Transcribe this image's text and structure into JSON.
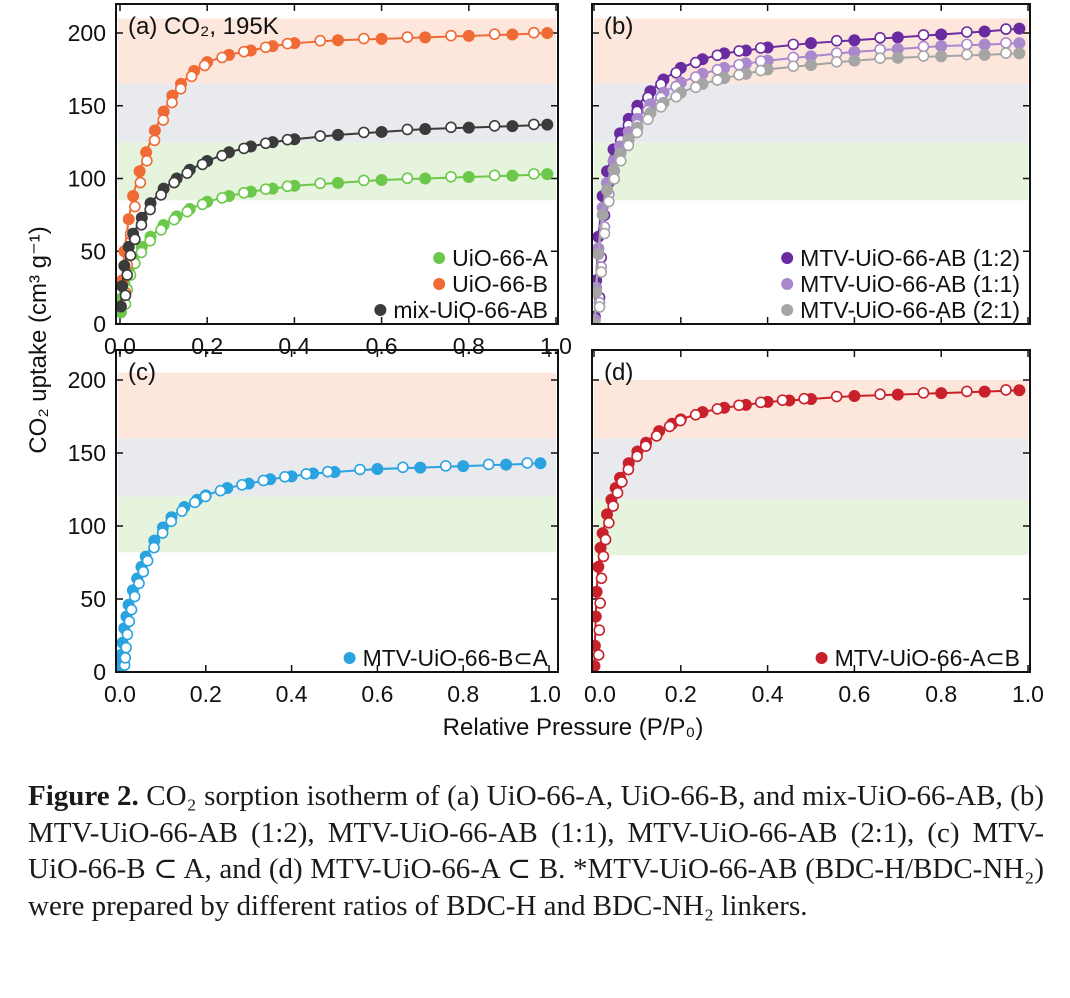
{
  "chart_data": [
    {
      "type": "scatter",
      "panel_label": "(a) CO₂, 195K",
      "xlim": [
        0,
        1.0
      ],
      "ylim": [
        0,
        200
      ],
      "x_ticks": [
        "0.0",
        "0.2",
        "0.4",
        "0.6",
        "0.8",
        "1.0"
      ],
      "y_ticks": [
        "0",
        "50",
        "100",
        "150",
        "200"
      ],
      "legend_placement": "bottom-right",
      "bands": [
        {
          "from": 165,
          "to": 210,
          "color": "#fde7dc"
        },
        {
          "from": 125,
          "to": 165,
          "color": "#e8eaee"
        },
        {
          "from": 85,
          "to": 125,
          "color": "#e6f4dd"
        }
      ],
      "series": [
        {
          "name": "UiO-66-A",
          "color": "#6cc84a",
          "x": [
            0.002,
            0.005,
            0.01,
            0.02,
            0.03,
            0.05,
            0.07,
            0.1,
            0.13,
            0.16,
            0.2,
            0.25,
            0.3,
            0.35,
            0.4,
            0.5,
            0.6,
            0.7,
            0.8,
            0.9,
            0.98
          ],
          "y": [
            8,
            18,
            28,
            38,
            44,
            53,
            60,
            68,
            74,
            79,
            84,
            88,
            91,
            93,
            95,
            97,
            99,
            100,
            101,
            102,
            103
          ]
        },
        {
          "name": "UiO-66-B",
          "color": "#ef6a34",
          "x": [
            0.002,
            0.005,
            0.01,
            0.02,
            0.03,
            0.045,
            0.06,
            0.08,
            0.1,
            0.12,
            0.14,
            0.17,
            0.2,
            0.25,
            0.3,
            0.35,
            0.4,
            0.5,
            0.6,
            0.7,
            0.8,
            0.9,
            0.98
          ],
          "y": [
            12,
            30,
            50,
            72,
            88,
            105,
            118,
            133,
            146,
            157,
            165,
            174,
            180,
            185,
            188,
            191,
            193,
            195,
            196,
            197,
            198,
            199,
            200
          ]
        },
        {
          "name": "mix-UiO-66-AB",
          "color": "#3b3b3b",
          "x": [
            0.002,
            0.005,
            0.01,
            0.02,
            0.03,
            0.05,
            0.07,
            0.1,
            0.13,
            0.16,
            0.2,
            0.25,
            0.3,
            0.35,
            0.4,
            0.5,
            0.6,
            0.7,
            0.8,
            0.9,
            0.98
          ],
          "y": [
            12,
            26,
            40,
            53,
            62,
            73,
            83,
            93,
            100,
            106,
            112,
            118,
            122,
            125,
            127,
            130,
            132,
            134,
            135,
            136,
            137
          ]
        }
      ]
    },
    {
      "type": "scatter",
      "panel_label": "(b)",
      "xlim": [
        0,
        1.0
      ],
      "ylim": [
        0,
        200
      ],
      "legend_placement": "bottom-right",
      "bands": [
        {
          "from": 165,
          "to": 210,
          "color": "#fde7dc"
        },
        {
          "from": 125,
          "to": 165,
          "color": "#e8eaee"
        },
        {
          "from": 85,
          "to": 125,
          "color": "#e6f4dd"
        }
      ],
      "series": [
        {
          "name": "MTV-UiO-66-AB (1:2)",
          "color": "#6a2aa0",
          "x": [
            0.002,
            0.005,
            0.01,
            0.02,
            0.03,
            0.045,
            0.06,
            0.08,
            0.1,
            0.13,
            0.16,
            0.2,
            0.25,
            0.3,
            0.35,
            0.4,
            0.5,
            0.6,
            0.7,
            0.8,
            0.9,
            0.98
          ],
          "y": [
            5,
            30,
            60,
            88,
            105,
            120,
            131,
            141,
            150,
            160,
            168,
            176,
            182,
            186,
            188,
            190,
            193,
            195,
            197,
            199,
            201,
            203
          ]
        },
        {
          "name": "MTV-UiO-66-AB (1:1)",
          "color": "#a988cc",
          "x": [
            0.002,
            0.005,
            0.01,
            0.02,
            0.03,
            0.045,
            0.06,
            0.08,
            0.1,
            0.13,
            0.16,
            0.2,
            0.25,
            0.3,
            0.35,
            0.4,
            0.5,
            0.6,
            0.7,
            0.8,
            0.9,
            0.98
          ],
          "y": [
            3,
            25,
            52,
            80,
            97,
            112,
            122,
            132,
            141,
            151,
            159,
            166,
            172,
            176,
            179,
            181,
            184,
            187,
            189,
            191,
            192,
            193
          ]
        },
        {
          "name": "MTV-UiO-66-AB (2:1)",
          "color": "#a5a5a5",
          "x": [
            0.002,
            0.005,
            0.01,
            0.02,
            0.03,
            0.045,
            0.06,
            0.08,
            0.1,
            0.13,
            0.16,
            0.2,
            0.25,
            0.3,
            0.35,
            0.4,
            0.5,
            0.6,
            0.7,
            0.8,
            0.9,
            0.98
          ],
          "y": [
            0,
            22,
            48,
            75,
            92,
            106,
            117,
            127,
            135,
            145,
            152,
            159,
            165,
            169,
            172,
            175,
            178,
            181,
            183,
            184,
            185,
            186
          ]
        }
      ]
    },
    {
      "type": "scatter",
      "panel_label": "(c)",
      "xlim": [
        0,
        1.0
      ],
      "ylim": [
        0,
        200
      ],
      "x_ticks": [
        "0.0",
        "0.2",
        "0.4",
        "0.6",
        "0.8",
        "1.0"
      ],
      "y_ticks": [
        "0",
        "50",
        "100",
        "150",
        "200"
      ],
      "legend_placement": "bottom-right",
      "bands": [
        {
          "from": 160,
          "to": 205,
          "color": "#fde7dc"
        },
        {
          "from": 120,
          "to": 160,
          "color": "#e8eaee"
        },
        {
          "from": 82,
          "to": 120,
          "color": "#e6f4dd"
        }
      ],
      "series": [
        {
          "name": "MTV-UiO-66-B⊂A",
          "color": "#2ba3e0",
          "x": [
            0.001,
            0.002,
            0.004,
            0.006,
            0.01,
            0.015,
            0.02,
            0.03,
            0.04,
            0.05,
            0.06,
            0.08,
            0.1,
            0.12,
            0.15,
            0.18,
            0.2,
            0.25,
            0.3,
            0.35,
            0.4,
            0.45,
            0.5,
            0.6,
            0.7,
            0.8,
            0.9,
            0.98
          ],
          "y": [
            2,
            6,
            12,
            20,
            30,
            38,
            46,
            56,
            64,
            72,
            79,
            90,
            99,
            106,
            113,
            118,
            121,
            126,
            129,
            132,
            134,
            136,
            137,
            139,
            140,
            141,
            142,
            143
          ]
        }
      ]
    },
    {
      "type": "scatter",
      "panel_label": "(d)",
      "xlim": [
        0,
        1.0
      ],
      "ylim": [
        0,
        200
      ],
      "x_ticks": [
        "0.0",
        "0.2",
        "0.4",
        "0.6",
        "0.8",
        "1.0"
      ],
      "legend_placement": "bottom-right",
      "bands": [
        {
          "from": 160,
          "to": 200,
          "color": "#fde7dc"
        },
        {
          "from": 118,
          "to": 160,
          "color": "#e8eaee"
        },
        {
          "from": 80,
          "to": 118,
          "color": "#e6f4dd"
        }
      ],
      "series": [
        {
          "name": "MTV-UiO-66-A⊂B",
          "color": "#c9212b",
          "x": [
            0.001,
            0.002,
            0.004,
            0.006,
            0.01,
            0.015,
            0.02,
            0.03,
            0.04,
            0.05,
            0.06,
            0.08,
            0.1,
            0.12,
            0.15,
            0.18,
            0.2,
            0.25,
            0.3,
            0.35,
            0.4,
            0.45,
            0.5,
            0.6,
            0.7,
            0.8,
            0.9,
            0.98
          ],
          "y": [
            4,
            18,
            38,
            55,
            72,
            85,
            95,
            108,
            118,
            126,
            133,
            143,
            151,
            157,
            165,
            170,
            173,
            178,
            181,
            183,
            185,
            186,
            187,
            189,
            190,
            191,
            192,
            193
          ]
        }
      ]
    }
  ],
  "axes": {
    "xlabel": "Relative Pressure (P/P₀)",
    "ylabel": "CO₂ uptake  (cm³ g⁻¹)"
  },
  "caption": {
    "label": "Figure 2.",
    "text": " CO₂ sorption isotherm of (a) UiO-66-A, UiO-66-B, and mix-UiO-66-AB, (b) MTV-UiO-66-AB (1:2), MTV-UiO-66-AB (1:1), MTV-UiO-66-AB (2:1), (c) MTV-UiO-66-B ⊂ A, and (d) MTV-UiO-66-A ⊂ B. *MTV-UiO-66-AB (BDC-H/BDC-NH₂) were prepared by different ratios of BDC-H and BDC-NH₂ linkers."
  }
}
